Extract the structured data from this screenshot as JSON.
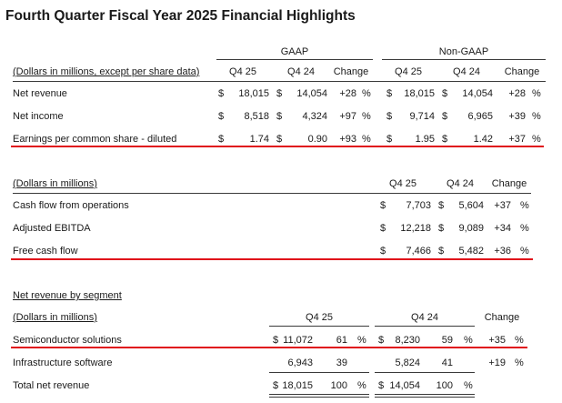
{
  "title": "Fourth Quarter Fiscal Year 2025 Financial Highlights",
  "colors": {
    "red_underline": "#e0101a",
    "rule": "#3a3a3a"
  },
  "table1": {
    "gaap_header": "GAAP",
    "nongaap_header": "Non-GAAP",
    "units_label": "(Dollars in millions, except per share data)",
    "columns": [
      "Q4 25",
      "Q4 24",
      "Change",
      "Q4 25",
      "Q4 24",
      "Change"
    ],
    "rows": [
      {
        "label": "Net revenue",
        "g_q425": "18,015",
        "g_q424": "14,054",
        "g_chg": "+28",
        "g_pct": "%",
        "n_q425": "18,015",
        "n_q424": "14,054",
        "n_chg": "+28",
        "n_pct": "%"
      },
      {
        "label": "Net income",
        "g_q425": "8,518",
        "g_q424": "4,324",
        "g_chg": "+97",
        "g_pct": "%",
        "n_q425": "9,714",
        "n_q424": "6,965",
        "n_chg": "+39",
        "n_pct": "%"
      },
      {
        "label": "Earnings per common share - diluted",
        "g_q425": "1.74",
        "g_q424": "0.90",
        "g_chg": "+93",
        "g_pct": "%",
        "n_q425": "1.95",
        "n_q424": "1.42",
        "n_chg": "+37",
        "n_pct": "%"
      }
    ],
    "dollar_sign": "$"
  },
  "table2": {
    "units_label": "(Dollars in millions)",
    "columns": [
      "Q4 25",
      "Q4 24",
      "Change"
    ],
    "rows": [
      {
        "label": "Cash flow from operations",
        "q425": "7,703",
        "q424": "5,604",
        "chg": "+37",
        "pct": "%"
      },
      {
        "label": "Adjusted EBITDA",
        "q425": "12,218",
        "q424": "9,089",
        "chg": "+34",
        "pct": "%"
      },
      {
        "label": "Free cash flow",
        "q425": "7,466",
        "q424": "5,482",
        "chg": "+36",
        "pct": "%"
      }
    ],
    "dollar_sign": "$"
  },
  "table3": {
    "section_label": "Net revenue by segment",
    "units_label": "(Dollars in millions)",
    "columns": [
      "Q4 25",
      "Q4 24",
      "Change"
    ],
    "rows": [
      {
        "label": "Semiconductor solutions",
        "d1": "$",
        "q425": "11,072",
        "p425": "61",
        "pp1": "%",
        "d2": "$",
        "q424": "8,230",
        "p424": "59",
        "pp2": "%",
        "chg": "+35",
        "pct": "%"
      },
      {
        "label": "Infrastructure software",
        "d1": "",
        "q425": "6,943",
        "p425": "39",
        "pp1": "",
        "d2": "",
        "q424": "5,824",
        "p424": "41",
        "pp2": "",
        "chg": "+19",
        "pct": "%"
      },
      {
        "label": "Total net revenue",
        "d1": "$",
        "q425": "18,015",
        "p425": "100",
        "pp1": "%",
        "d2": "$",
        "q424": "14,054",
        "p424": "100",
        "pp2": "%",
        "chg": "",
        "pct": ""
      }
    ]
  }
}
